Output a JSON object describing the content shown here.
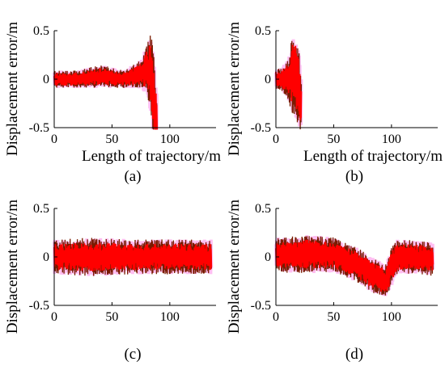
{
  "chart_data": [
    {
      "type": "line",
      "panel": "a",
      "caption": "(a)",
      "xlabel": "Length of trajectory/m",
      "ylabel": "Displacement error/m",
      "xlim": [
        0,
        140
      ],
      "ylim": [
        -0.5,
        0.5
      ],
      "xticks": [
        "0",
        "50",
        "100"
      ],
      "yticks": [
        "0.5",
        "0",
        "-0.5"
      ],
      "grid": false,
      "series": [
        {
          "color": "#ff0000",
          "x": [
            0,
            20,
            40,
            60,
            75,
            80,
            84,
            87,
            89
          ],
          "y": [
            0.0,
            0.0,
            0.03,
            0.0,
            0.05,
            0.1,
            0.05,
            -0.3,
            -0.5
          ],
          "envelope": [
            0.09,
            0.09,
            0.12,
            0.09,
            0.15,
            0.25,
            0.45,
            0.45,
            0.3
          ]
        }
      ]
    },
    {
      "type": "line",
      "panel": "b",
      "caption": "(b)",
      "xlabel": "Length of trajectory/m",
      "ylabel": "Displacement error/m",
      "xlim": [
        0,
        140
      ],
      "ylim": [
        -0.5,
        0.5
      ],
      "xticks": [
        "0",
        "50",
        "100"
      ],
      "yticks": [
        "0.5",
        "0",
        "-0.5"
      ],
      "grid": false,
      "series": [
        {
          "color": "#ff0000",
          "x": [
            0,
            5,
            10,
            14,
            17,
            20,
            22
          ],
          "y": [
            0.0,
            0.0,
            0.0,
            0.05,
            0.05,
            -0.1,
            -0.3
          ],
          "envelope": [
            0.1,
            0.12,
            0.2,
            0.4,
            0.45,
            0.4,
            0.3
          ]
        }
      ]
    },
    {
      "type": "line",
      "panel": "c",
      "caption": "(c)",
      "xlabel": "",
      "ylabel": "Displacement error/m",
      "xlim": [
        0,
        140
      ],
      "ylim": [
        -0.5,
        0.5
      ],
      "xticks": [
        "0",
        "50",
        "100"
      ],
      "yticks": [
        "0.5",
        "0",
        "-0.5"
      ],
      "grid": false,
      "series": [
        {
          "color": "#ff0000",
          "x": [
            0,
            35,
            70,
            105,
            136
          ],
          "y": [
            0.0,
            0.0,
            0.0,
            0.0,
            0.0
          ],
          "envelope": [
            0.18,
            0.2,
            0.18,
            0.18,
            0.18
          ]
        }
      ]
    },
    {
      "type": "line",
      "panel": "d",
      "caption": "(d)",
      "xlabel": "",
      "ylabel": "Displacement error/m",
      "xlim": [
        0,
        140
      ],
      "ylim": [
        -0.5,
        0.5
      ],
      "xticks": [
        "0",
        "50",
        "100"
      ],
      "yticks": [
        "0.5",
        "0",
        "-0.5"
      ],
      "grid": false,
      "series": [
        {
          "color": "#ff0000",
          "x": [
            0,
            30,
            50,
            70,
            85,
            95,
            100,
            105,
            120,
            136
          ],
          "y": [
            0.02,
            0.03,
            0.02,
            -0.08,
            -0.2,
            -0.25,
            -0.1,
            0.0,
            0.0,
            -0.02
          ],
          "envelope": [
            0.18,
            0.2,
            0.18,
            0.18,
            0.18,
            0.18,
            0.2,
            0.18,
            0.17,
            0.18
          ]
        }
      ]
    }
  ]
}
